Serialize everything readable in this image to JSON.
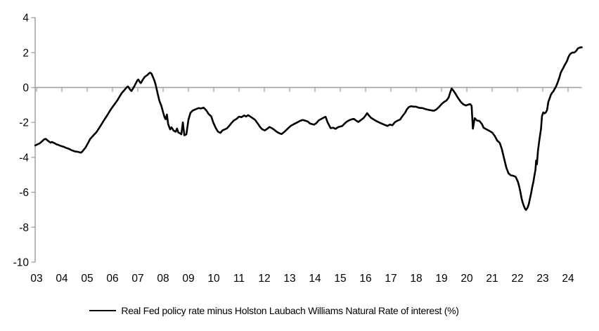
{
  "chart_data": {
    "type": "line",
    "title": "",
    "legend_position": "bottom",
    "background": "#ffffff",
    "colors": {
      "line": "#000000",
      "axis": "#a6a6a6",
      "text": "#000000"
    },
    "grid": "zero-line-only",
    "y_axis": {
      "ticks": [
        4,
        2,
        0,
        -2,
        -4,
        -6,
        -8,
        -10
      ],
      "tick_labels": [
        "4",
        "2",
        "0",
        "-2",
        "-4",
        "-6",
        "-8",
        "-10"
      ],
      "range": [
        -10,
        4
      ]
    },
    "x_axis": {
      "tick_labels": [
        "03",
        "04",
        "05",
        "06",
        "07",
        "08",
        "09",
        "10",
        "11",
        "12",
        "13",
        "14",
        "15",
        "16",
        "17",
        "18",
        "19",
        "20",
        "21",
        "22",
        "23",
        "24"
      ],
      "first_year": 2003,
      "range_years": [
        2002.95,
        2024.6
      ]
    },
    "series": [
      {
        "name": "Real Fed policy rate minus Holston Laubach Williams Natural Rate of interest (%)",
        "points": [
          [
            2002.95,
            -3.32
          ],
          [
            2003.03,
            -3.26
          ],
          [
            2003.13,
            -3.19
          ],
          [
            2003.22,
            -3.08
          ],
          [
            2003.3,
            -2.97
          ],
          [
            2003.36,
            -2.94
          ],
          [
            2003.45,
            -3.05
          ],
          [
            2003.55,
            -3.16
          ],
          [
            2003.6,
            -3.12
          ],
          [
            2003.7,
            -3.18
          ],
          [
            2003.78,
            -3.25
          ],
          [
            2003.87,
            -3.29
          ],
          [
            2003.96,
            -3.35
          ],
          [
            2004.06,
            -3.39
          ],
          [
            2004.15,
            -3.45
          ],
          [
            2004.29,
            -3.52
          ],
          [
            2004.38,
            -3.59
          ],
          [
            2004.52,
            -3.66
          ],
          [
            2004.61,
            -3.68
          ],
          [
            2004.7,
            -3.71
          ],
          [
            2004.76,
            -3.73
          ],
          [
            2004.81,
            -3.66
          ],
          [
            2004.85,
            -3.59
          ],
          [
            2004.89,
            -3.52
          ],
          [
            2004.94,
            -3.43
          ],
          [
            2004.98,
            -3.32
          ],
          [
            2005.03,
            -3.19
          ],
          [
            2005.08,
            -3.05
          ],
          [
            2005.12,
            -2.94
          ],
          [
            2005.17,
            -2.87
          ],
          [
            2005.22,
            -2.79
          ],
          [
            2005.27,
            -2.7
          ],
          [
            2005.32,
            -2.63
          ],
          [
            2005.37,
            -2.55
          ],
          [
            2005.45,
            -2.37
          ],
          [
            2005.54,
            -2.17
          ],
          [
            2005.63,
            -1.95
          ],
          [
            2005.72,
            -1.75
          ],
          [
            2005.81,
            -1.55
          ],
          [
            2005.9,
            -1.33
          ],
          [
            2006.0,
            -1.12
          ],
          [
            2006.1,
            -0.92
          ],
          [
            2006.2,
            -0.72
          ],
          [
            2006.28,
            -0.52
          ],
          [
            2006.37,
            -0.31
          ],
          [
            2006.47,
            -0.15
          ],
          [
            2006.56,
            0.01
          ],
          [
            2006.61,
            0.06
          ],
          [
            2006.7,
            -0.13
          ],
          [
            2006.75,
            -0.2
          ],
          [
            2006.83,
            -0.01
          ],
          [
            2006.88,
            0.12
          ],
          [
            2006.93,
            0.26
          ],
          [
            2006.98,
            0.41
          ],
          [
            2007.02,
            0.46
          ],
          [
            2007.07,
            0.33
          ],
          [
            2007.12,
            0.25
          ],
          [
            2007.2,
            0.45
          ],
          [
            2007.27,
            0.6
          ],
          [
            2007.33,
            0.67
          ],
          [
            2007.39,
            0.73
          ],
          [
            2007.44,
            0.8
          ],
          [
            2007.48,
            0.85
          ],
          [
            2007.54,
            0.8
          ],
          [
            2007.6,
            0.6
          ],
          [
            2007.66,
            0.38
          ],
          [
            2007.71,
            0.12
          ],
          [
            2007.78,
            -0.32
          ],
          [
            2007.85,
            -0.75
          ],
          [
            2007.93,
            -1.05
          ],
          [
            2008.0,
            -1.42
          ],
          [
            2008.06,
            -1.72
          ],
          [
            2008.1,
            -1.82
          ],
          [
            2008.15,
            -1.55
          ],
          [
            2008.2,
            -2.1
          ],
          [
            2008.28,
            -2.4
          ],
          [
            2008.33,
            -2.28
          ],
          [
            2008.42,
            -2.48
          ],
          [
            2008.5,
            -2.53
          ],
          [
            2008.55,
            -2.35
          ],
          [
            2008.6,
            -2.57
          ],
          [
            2008.66,
            -2.62
          ],
          [
            2008.72,
            -2.68
          ],
          [
            2008.78,
            -2.0
          ],
          [
            2008.84,
            -2.74
          ],
          [
            2008.92,
            -2.68
          ],
          [
            2009.0,
            -1.85
          ],
          [
            2009.08,
            -1.45
          ],
          [
            2009.17,
            -1.32
          ],
          [
            2009.28,
            -1.25
          ],
          [
            2009.4,
            -1.18
          ],
          [
            2009.5,
            -1.2
          ],
          [
            2009.6,
            -1.15
          ],
          [
            2009.7,
            -1.3
          ],
          [
            2009.8,
            -1.52
          ],
          [
            2009.9,
            -1.65
          ],
          [
            2009.98,
            -2.0
          ],
          [
            2010.08,
            -2.32
          ],
          [
            2010.17,
            -2.53
          ],
          [
            2010.26,
            -2.6
          ],
          [
            2010.35,
            -2.45
          ],
          [
            2010.44,
            -2.4
          ],
          [
            2010.53,
            -2.33
          ],
          [
            2010.62,
            -2.18
          ],
          [
            2010.71,
            -2.02
          ],
          [
            2010.8,
            -1.88
          ],
          [
            2010.9,
            -1.8
          ],
          [
            2011.0,
            -1.67
          ],
          [
            2011.1,
            -1.7
          ],
          [
            2011.2,
            -1.6
          ],
          [
            2011.28,
            -1.66
          ],
          [
            2011.36,
            -1.58
          ],
          [
            2011.5,
            -1.72
          ],
          [
            2011.64,
            -1.86
          ],
          [
            2011.74,
            -2.06
          ],
          [
            2011.83,
            -2.26
          ],
          [
            2011.92,
            -2.4
          ],
          [
            2012.02,
            -2.46
          ],
          [
            2012.11,
            -2.37
          ],
          [
            2012.2,
            -2.26
          ],
          [
            2012.3,
            -2.33
          ],
          [
            2012.4,
            -2.43
          ],
          [
            2012.48,
            -2.53
          ],
          [
            2012.58,
            -2.61
          ],
          [
            2012.68,
            -2.67
          ],
          [
            2012.78,
            -2.55
          ],
          [
            2012.88,
            -2.42
          ],
          [
            2013.03,
            -2.21
          ],
          [
            2013.16,
            -2.1
          ],
          [
            2013.3,
            -2.0
          ],
          [
            2013.42,
            -1.9
          ],
          [
            2013.52,
            -1.86
          ],
          [
            2013.62,
            -1.9
          ],
          [
            2013.72,
            -1.95
          ],
          [
            2013.8,
            -2.06
          ],
          [
            2013.96,
            -2.13
          ],
          [
            2014.05,
            -2.05
          ],
          [
            2014.15,
            -1.88
          ],
          [
            2014.25,
            -1.8
          ],
          [
            2014.35,
            -1.72
          ],
          [
            2014.42,
            -1.68
          ],
          [
            2014.5,
            -2.0
          ],
          [
            2014.62,
            -2.33
          ],
          [
            2014.72,
            -2.3
          ],
          [
            2014.81,
            -2.37
          ],
          [
            2014.92,
            -2.27
          ],
          [
            2015.08,
            -2.2
          ],
          [
            2015.17,
            -2.07
          ],
          [
            2015.26,
            -1.95
          ],
          [
            2015.36,
            -1.87
          ],
          [
            2015.46,
            -1.82
          ],
          [
            2015.54,
            -1.8
          ],
          [
            2015.63,
            -1.9
          ],
          [
            2015.71,
            -1.97
          ],
          [
            2015.81,
            -1.87
          ],
          [
            2015.92,
            -1.75
          ],
          [
            2016.0,
            -1.6
          ],
          [
            2016.06,
            -1.47
          ],
          [
            2016.13,
            -1.6
          ],
          [
            2016.21,
            -1.73
          ],
          [
            2016.32,
            -1.83
          ],
          [
            2016.42,
            -1.92
          ],
          [
            2016.56,
            -2.02
          ],
          [
            2016.74,
            -2.13
          ],
          [
            2016.86,
            -2.2
          ],
          [
            2016.96,
            -2.12
          ],
          [
            2017.06,
            -2.16
          ],
          [
            2017.16,
            -1.98
          ],
          [
            2017.26,
            -1.9
          ],
          [
            2017.36,
            -1.84
          ],
          [
            2017.46,
            -1.63
          ],
          [
            2017.56,
            -1.45
          ],
          [
            2017.63,
            -1.25
          ],
          [
            2017.71,
            -1.12
          ],
          [
            2017.8,
            -1.07
          ],
          [
            2017.9,
            -1.1
          ],
          [
            2018.0,
            -1.1
          ],
          [
            2018.1,
            -1.16
          ],
          [
            2018.25,
            -1.18
          ],
          [
            2018.4,
            -1.25
          ],
          [
            2018.55,
            -1.3
          ],
          [
            2018.7,
            -1.33
          ],
          [
            2018.8,
            -1.25
          ],
          [
            2018.9,
            -1.12
          ],
          [
            2019.0,
            -0.95
          ],
          [
            2019.1,
            -0.83
          ],
          [
            2019.2,
            -0.74
          ],
          [
            2019.28,
            -0.58
          ],
          [
            2019.34,
            -0.3
          ],
          [
            2019.4,
            -0.06
          ],
          [
            2019.47,
            -0.18
          ],
          [
            2019.56,
            -0.38
          ],
          [
            2019.66,
            -0.62
          ],
          [
            2019.76,
            -0.82
          ],
          [
            2019.86,
            -0.96
          ],
          [
            2019.96,
            -1.03
          ],
          [
            2020.06,
            -0.98
          ],
          [
            2020.13,
            -0.95
          ],
          [
            2020.19,
            -1.05
          ],
          [
            2020.24,
            -2.36
          ],
          [
            2020.31,
            -1.76
          ],
          [
            2020.4,
            -1.89
          ],
          [
            2020.5,
            -1.92
          ],
          [
            2020.6,
            -2.1
          ],
          [
            2020.66,
            -2.3
          ],
          [
            2020.73,
            -2.36
          ],
          [
            2020.82,
            -2.43
          ],
          [
            2020.91,
            -2.5
          ],
          [
            2021.0,
            -2.58
          ],
          [
            2021.1,
            -2.77
          ],
          [
            2021.2,
            -3.04
          ],
          [
            2021.3,
            -3.17
          ],
          [
            2021.38,
            -3.51
          ],
          [
            2021.47,
            -4.05
          ],
          [
            2021.56,
            -4.59
          ],
          [
            2021.65,
            -4.92
          ],
          [
            2021.74,
            -5.03
          ],
          [
            2021.84,
            -5.06
          ],
          [
            2021.93,
            -5.12
          ],
          [
            2022.02,
            -5.4
          ],
          [
            2022.07,
            -5.67
          ],
          [
            2022.12,
            -6.0
          ],
          [
            2022.16,
            -6.34
          ],
          [
            2022.21,
            -6.61
          ],
          [
            2022.26,
            -6.81
          ],
          [
            2022.3,
            -6.94
          ],
          [
            2022.34,
            -7.01
          ],
          [
            2022.4,
            -6.88
          ],
          [
            2022.45,
            -6.67
          ],
          [
            2022.49,
            -6.4
          ],
          [
            2022.54,
            -6.07
          ],
          [
            2022.58,
            -5.73
          ],
          [
            2022.63,
            -5.4
          ],
          [
            2022.67,
            -5.06
          ],
          [
            2022.71,
            -4.72
          ],
          [
            2022.74,
            -4.18
          ],
          [
            2022.77,
            -4.4
          ],
          [
            2022.81,
            -3.62
          ],
          [
            2022.86,
            -3.06
          ],
          [
            2022.89,
            -2.78
          ],
          [
            2022.93,
            -2.38
          ],
          [
            2022.97,
            -1.64
          ],
          [
            2023.02,
            -1.43
          ],
          [
            2023.07,
            -1.48
          ],
          [
            2023.12,
            -1.43
          ],
          [
            2023.17,
            -1.3
          ],
          [
            2023.22,
            -0.83
          ],
          [
            2023.27,
            -0.63
          ],
          [
            2023.32,
            -0.42
          ],
          [
            2023.37,
            -0.3
          ],
          [
            2023.42,
            -0.22
          ],
          [
            2023.46,
            -0.1
          ],
          [
            2023.51,
            0.02
          ],
          [
            2023.56,
            0.18
          ],
          [
            2023.61,
            0.38
          ],
          [
            2023.66,
            0.59
          ],
          [
            2023.71,
            0.85
          ],
          [
            2023.76,
            0.99
          ],
          [
            2023.81,
            1.12
          ],
          [
            2023.86,
            1.27
          ],
          [
            2023.91,
            1.39
          ],
          [
            2023.96,
            1.53
          ],
          [
            2024.01,
            1.73
          ],
          [
            2024.06,
            1.87
          ],
          [
            2024.11,
            1.95
          ],
          [
            2024.17,
            2.0
          ],
          [
            2024.24,
            2.0
          ],
          [
            2024.29,
            2.05
          ],
          [
            2024.34,
            2.13
          ],
          [
            2024.39,
            2.24
          ],
          [
            2024.44,
            2.27
          ],
          [
            2024.5,
            2.3
          ],
          [
            2024.56,
            2.3
          ]
        ]
      }
    ]
  },
  "legend": {
    "label": "Real Fed policy rate minus Holston Laubach Williams Natural Rate of interest (%)"
  }
}
